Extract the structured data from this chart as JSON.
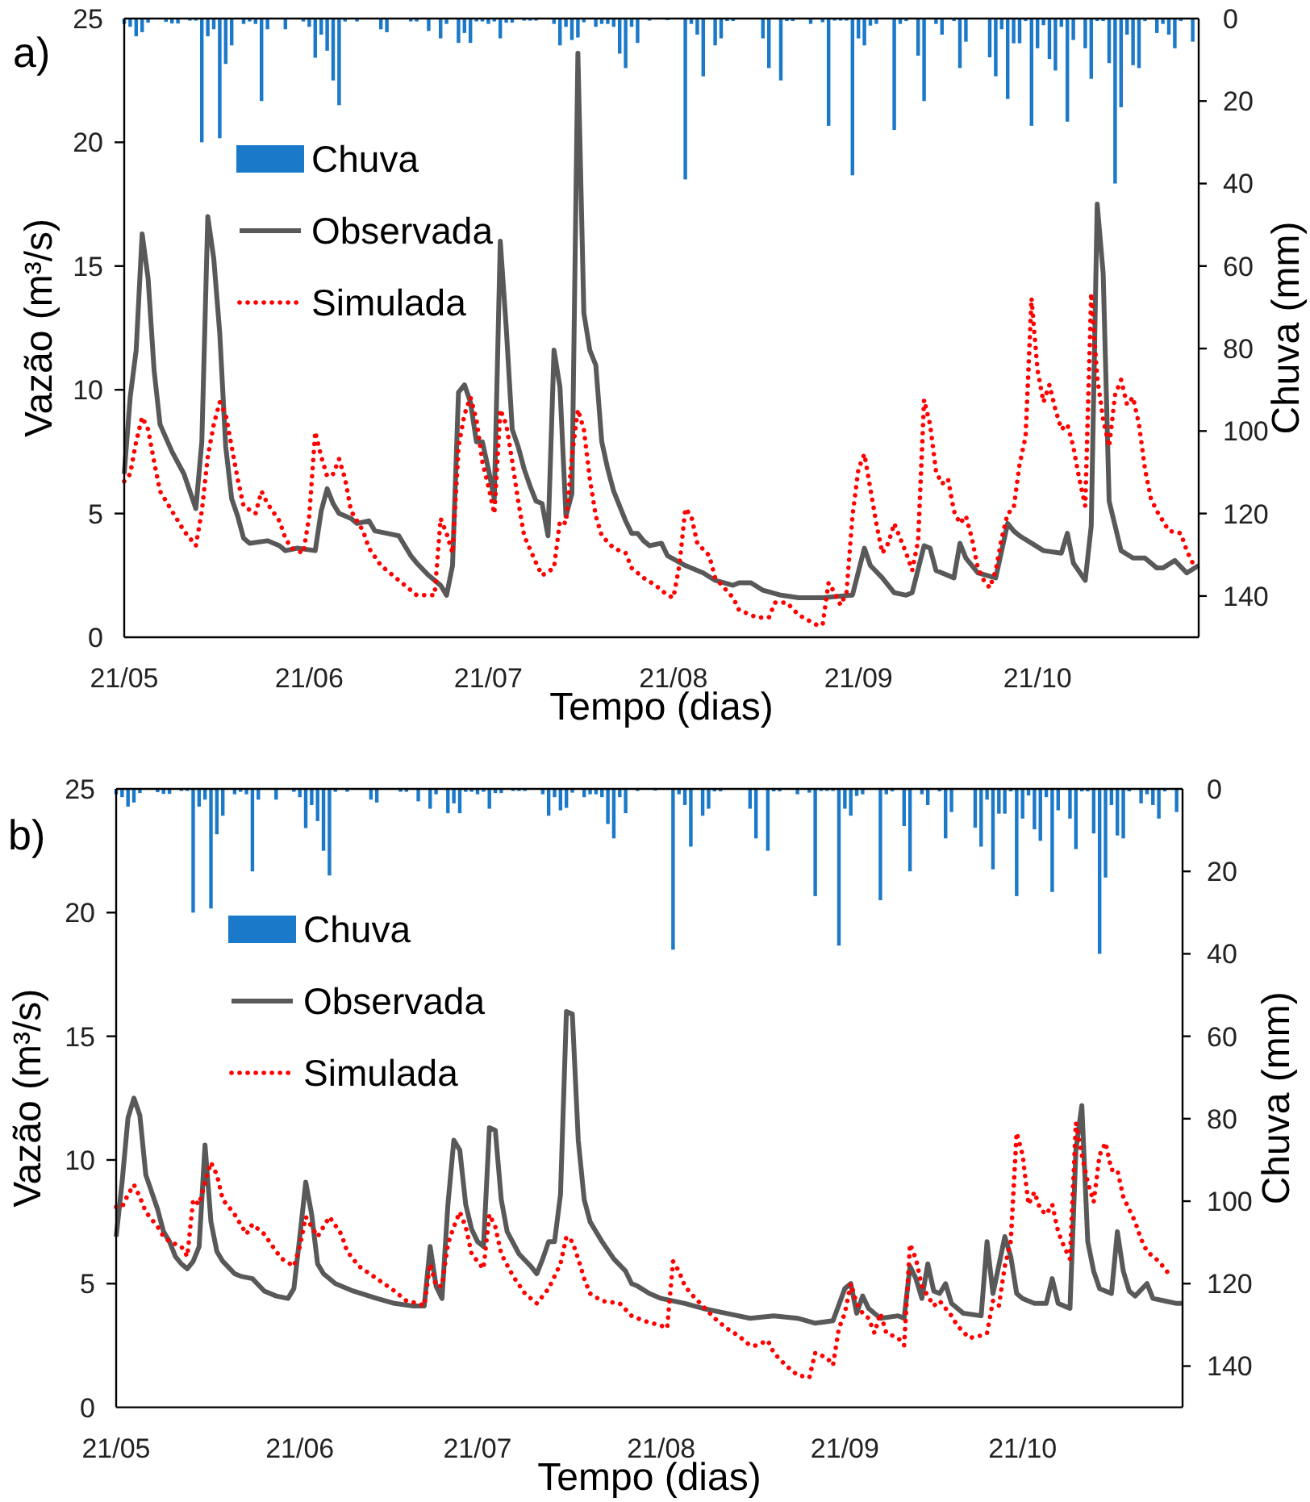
{
  "chart_data": [
    {
      "type": "line",
      "title": "a)",
      "xlabel": "Tempo (dias)",
      "ylabel": "Vazão (m³/s)",
      "y2label": "Chuva (mm)",
      "xlim": [
        "--05-21",
        "--11-17"
      ],
      "xticks": [
        {
          "value": "--05-21",
          "label": "21/05"
        },
        {
          "value": "--06-21",
          "label": "21/06"
        },
        {
          "value": "--07-21",
          "label": "21/07"
        },
        {
          "value": "--08-21",
          "label": "21/08"
        },
        {
          "value": "--09-21",
          "label": "21/09"
        },
        {
          "value": "--10-21",
          "label": "21/10"
        }
      ],
      "ylim": [
        0,
        25
      ],
      "yticks": [
        0,
        5,
        10,
        15,
        20,
        25
      ],
      "y2lim": [
        150,
        0
      ],
      "y2ticks": [
        0,
        20,
        40,
        60,
        80,
        100,
        120,
        140
      ],
      "legend": "top left",
      "series": [
        {
          "name": "Chuva",
          "type": "bar",
          "axis": "y2",
          "color": "#1b79c9",
          "x": [
            "--05-21",
            "--05-22",
            "--05-23",
            "--05-24",
            "--05-25",
            "--05-28",
            "--05-29",
            "--05-30",
            "--06-01",
            "--06-02",
            "--06-03",
            "--06-04",
            "--06-05",
            "--06-06",
            "--06-07",
            "--06-08",
            "--06-10",
            "--06-11",
            "--06-12",
            "--06-13",
            "--06-14",
            "--06-17",
            "--06-20",
            "--06-21",
            "--06-22",
            "--06-23",
            "--06-24",
            "--06-25",
            "--06-26",
            "--06-27",
            "--06-29",
            "--07-03",
            "--07-04",
            "--07-08",
            "--07-09",
            "--07-11",
            "--07-13",
            "--07-14",
            "--07-16",
            "--07-17",
            "--07-18",
            "--07-19",
            "--07-20",
            "--07-21",
            "--07-22",
            "--07-23",
            "--07-24",
            "--07-25",
            "--07-27",
            "--07-28",
            "--07-29",
            "--08-01",
            "--08-02",
            "--08-03",
            "--08-04",
            "--08-05",
            "--08-06",
            "--08-08",
            "--08-09",
            "--08-10",
            "--08-11",
            "--08-12",
            "--08-13",
            "--08-14",
            "--08-15",
            "--08-17",
            "--08-20",
            "--08-23",
            "--08-24",
            "--08-25",
            "--08-26",
            "--08-28",
            "--08-29",
            "--08-30",
            "--08-31",
            "--09-05",
            "--09-06",
            "--09-08",
            "--09-09",
            "--09-10",
            "--09-13",
            "--09-15",
            "--09-16",
            "--09-17",
            "--09-18",
            "--09-19",
            "--09-20",
            "--09-21",
            "--09-22",
            "--09-23",
            "--09-24",
            "--09-27",
            "--09-28",
            "--09-29",
            "--10-01",
            "--10-02",
            "--10-04",
            "--10-05",
            "--10-07",
            "--10-08",
            "--10-09",
            "--10-13",
            "--10-14",
            "--10-15",
            "--10-16",
            "--10-17",
            "--10-18",
            "--10-19",
            "--10-20",
            "--10-21",
            "--10-22",
            "--10-23",
            "--10-24",
            "--10-25",
            "--10-26",
            "--10-27",
            "--10-29",
            "--10-30",
            "--10-31",
            "--11-01",
            "--11-02",
            "--11-03",
            "--11-04",
            "--11-05",
            "--11-06",
            "--11-07",
            "--11-08",
            "--11-10",
            "--11-11",
            "--11-12",
            "--11-13",
            "--11-14",
            "--11-16"
          ],
          "values": [
            1.3,
            2,
            4.3,
            3.3,
            1,
            0.8,
            1.2,
            1.2,
            0.5,
            0.5,
            30,
            4.3,
            2.6,
            29,
            11,
            6.5,
            1.3,
            0.7,
            1.3,
            20,
            2.6,
            2.6,
            0.7,
            2,
            9.5,
            3.9,
            7.8,
            15,
            21,
            0.7,
            0.7,
            2.6,
            3.3,
            0.7,
            0.7,
            3,
            4.8,
            1.3,
            5.9,
            3.5,
            5.9,
            0.7,
            0.7,
            1.3,
            0.7,
            4.8,
            1,
            1,
            0.5,
            0.5,
            0.5,
            1.3,
            6.5,
            2,
            5.2,
            4.6,
            0.9,
            2,
            1.3,
            1.3,
            2,
            8.5,
            12,
            2,
            5.9,
            0.5,
            0.4,
            39,
            1.3,
            3.9,
            14,
            6.5,
            4.8,
            0.6,
            0.6,
            4.8,
            12,
            15,
            0.6,
            0.6,
            1.3,
            0.9,
            26,
            0.5,
            0.5,
            0.5,
            38,
            4.8,
            6.5,
            1.7,
            1.3,
            27,
            1.3,
            0.6,
            9,
            20,
            1.3,
            3.9,
            0.6,
            12,
            5.6,
            9.4,
            14,
            2.6,
            19.5,
            6,
            6,
            0.6,
            26,
            7.2,
            1.6,
            9.8,
            12.6,
            2,
            25,
            5.2,
            7.2,
            14.6,
            0.6,
            0.6,
            10.8,
            40,
            21.5,
            3.9,
            11.3,
            12,
            0.6,
            3.5,
            1.3,
            3.9,
            7.2,
            0.6,
            5.6
          ]
        },
        {
          "name": "Observada",
          "color": "#595959",
          "line_style": "solid",
          "x": [
            "--05-21",
            "--05-22",
            "--05-23",
            "--05-24",
            "--05-25",
            "--05-26",
            "--05-27",
            "--05-29",
            "--05-31",
            "--06-02",
            "--06-03",
            "--06-04",
            "--06-05",
            "--06-06",
            "--06-07",
            "--06-08",
            "--06-09",
            "--06-10",
            "--06-11",
            "--06-14",
            "--06-16",
            "--06-17",
            "--06-19",
            "--06-22",
            "--06-23",
            "--06-24",
            "--06-25",
            "--06-26",
            "--06-28",
            "--06-29",
            "--07-01",
            "--07-02",
            "--07-04",
            "--07-06",
            "--07-07",
            "--07-08",
            "--07-09",
            "--07-11",
            "--07-13",
            "--07-14",
            "--07-15",
            "--07-16",
            "--07-17",
            "--07-18",
            "--07-19",
            "--07-20",
            "--07-21",
            "--07-22",
            "--07-23",
            "--07-24",
            "--07-25",
            "--07-26",
            "--07-27",
            "--07-28",
            "--07-29",
            "--07-30",
            "--07-31",
            "--08-01",
            "--08-02",
            "--08-03",
            "--08-04",
            "--08-05",
            "--08-06",
            "--08-07",
            "--08-08",
            "--08-09",
            "--08-10",
            "--08-11",
            "--08-13",
            "--08-14",
            "--08-15",
            "--08-16",
            "--08-17",
            "--08-19",
            "--08-20",
            "--08-23",
            "--08-26",
            "--08-28",
            "--08-31",
            "--09-01",
            "--09-03",
            "--09-05",
            "--09-08",
            "--09-11",
            "--09-15",
            "--09-20",
            "--09-22",
            "--09-23",
            "--09-25",
            "--09-27",
            "--09-29",
            "--09-30",
            "--10-02",
            "--10-03",
            "--10-04",
            "--10-07",
            "--10-08",
            "--10-09",
            "--10-11",
            "--10-14",
            "--10-16",
            "--10-17",
            "--10-18",
            "--10-20",
            "--10-22",
            "--10-25",
            "--10-26",
            "--10-27",
            "--10-29",
            "--10-30",
            "--10-31",
            "--11-01",
            "--11-02",
            "--11-04",
            "--11-06",
            "--11-08",
            "--11-10",
            "--11-11",
            "--11-13",
            "--11-15",
            "--11-17"
          ],
          "values": [
            6.6,
            9.7,
            11.6,
            16.3,
            14.5,
            10.8,
            8.6,
            7.5,
            6.6,
            5.2,
            7.9,
            17,
            15.3,
            12.3,
            7.7,
            5.6,
            4.9,
            4.0,
            3.8,
            3.9,
            3.7,
            3.5,
            3.6,
            3.5,
            5.1,
            6.0,
            5.4,
            5.0,
            4.8,
            4.6,
            4.7,
            4.3,
            4.2,
            4.1,
            3.7,
            3.3,
            3.0,
            2.5,
            2.1,
            1.7,
            2.9,
            9.9,
            10.2,
            9.5,
            7.9,
            7.9,
            6.8,
            5.6,
            16,
            12.5,
            8.4,
            7.7,
            6.8,
            6.1,
            5.5,
            5.4,
            4.1,
            11.6,
            10.1,
            4.9,
            5.8,
            23.6,
            13.1,
            11.6,
            11,
            7.9,
            6.8,
            5.9,
            4.7,
            4.2,
            4.2,
            3.9,
            3.7,
            3.8,
            3.3,
            2.9,
            2.6,
            2.3,
            2.1,
            2.2,
            2.2,
            1.9,
            1.7,
            1.6,
            1.6,
            1.7,
            3.6,
            2.9,
            2.4,
            1.8,
            1.7,
            1.8,
            3.7,
            3.6,
            2.7,
            2.4,
            3.8,
            3.2,
            2.6,
            2.4,
            4.6,
            4.3,
            4.1,
            3.8,
            3.5,
            3.4,
            4.2,
            3.0,
            2.3,
            4.5,
            17.5,
            14.7,
            5.5,
            3.5,
            3.2,
            3.2,
            2.8,
            2.8,
            3.1,
            2.6,
            2.9
          ]
        },
        {
          "name": "Simulada",
          "color": "#ff0000",
          "line_style": "dotted",
          "x": [
            "--05-21",
            "--05-22",
            "--05-23",
            "--05-24",
            "--05-25",
            "--05-26",
            "--05-27",
            "--05-29",
            "--05-31",
            "--06-01",
            "--06-02",
            "--06-03",
            "--06-04",
            "--06-05",
            "--06-06",
            "--06-07",
            "--06-08",
            "--06-09",
            "--06-10",
            "--06-12",
            "--06-13",
            "--06-14",
            "--06-16",
            "--06-17",
            "--06-18",
            "--06-20",
            "--06-21",
            "--06-22",
            "--06-23",
            "--06-24",
            "--06-25",
            "--06-26",
            "--06-27",
            "--06-28",
            "--06-30",
            "--07-01",
            "--07-03",
            "--07-05",
            "--07-07",
            "--07-09",
            "--07-10",
            "--07-12",
            "--07-13",
            "--07-14",
            "--07-15",
            "--07-16",
            "--07-17",
            "--07-18",
            "--07-19",
            "--07-20",
            "--07-21",
            "--07-22",
            "--07-23",
            "--07-24",
            "--07-25",
            "--07-26",
            "--07-27",
            "--07-29",
            "--07-30",
            "--08-01",
            "--08-02",
            "--08-03",
            "--08-04",
            "--08-05",
            "--08-06",
            "--08-07",
            "--08-08",
            "--08-09",
            "--08-11",
            "--08-13",
            "--08-14",
            "--08-16",
            "--08-18",
            "--08-20",
            "--08-21",
            "--08-22",
            "--08-23",
            "--08-24",
            "--08-25",
            "--08-27",
            "--08-28",
            "--08-31",
            "--09-01",
            "--09-04",
            "--09-06",
            "--09-07",
            "--09-09",
            "--09-11",
            "--09-14",
            "--09-15",
            "--09-16",
            "--09-17",
            "--09-18",
            "--09-19",
            "--09-20",
            "--09-21",
            "--09-22",
            "--09-23",
            "--09-24",
            "--09-25",
            "--09-26",
            "--09-27",
            "--09-28",
            "--09-29",
            "--09-30",
            "--10-01",
            "--10-02",
            "--10-03",
            "--10-04",
            "--10-05",
            "--10-06",
            "--10-07",
            "--10-08",
            "--10-09",
            "--10-10",
            "--10-11",
            "--10-12",
            "--10-13",
            "--10-14",
            "--10-15",
            "--10-16",
            "--10-17",
            "--10-18",
            "--10-19",
            "--10-20",
            "--10-21",
            "--10-22",
            "--10-23",
            "--10-24",
            "--10-25",
            "--10-26",
            "--10-27",
            "--10-28",
            "--10-29",
            "--10-30",
            "--10-31",
            "--11-01",
            "--11-02",
            "--11-03",
            "--11-04",
            "--11-05",
            "--11-06",
            "--11-07",
            "--11-08",
            "--11-09",
            "--11-10",
            "--11-12",
            "--11-14",
            "--11-15",
            "--11-16"
          ],
          "values": [
            6.3,
            6.6,
            7.9,
            8.9,
            8.4,
            7.1,
            5.9,
            5.1,
            4.3,
            4.0,
            3.7,
            5.1,
            7.3,
            8.6,
            9.5,
            9.0,
            7.7,
            6.4,
            5.3,
            5.0,
            5.9,
            5.4,
            4.7,
            4.0,
            3.6,
            3.4,
            4.9,
            8.3,
            7.3,
            6.5,
            6.6,
            7.2,
            6.4,
            5.1,
            4.3,
            3.6,
            2.9,
            2.5,
            2.1,
            1.7,
            1.7,
            1.7,
            4.8,
            4.2,
            3.4,
            7.7,
            9.0,
            9.7,
            8.8,
            7.1,
            6.1,
            5.0,
            9.2,
            8.6,
            7.1,
            5.5,
            4.1,
            3.0,
            2.5,
            2.8,
            4.7,
            4.6,
            7.3,
            9.2,
            8.4,
            6.4,
            4.9,
            4.1,
            3.6,
            3.4,
            2.8,
            2.4,
            2.1,
            1.7,
            1.6,
            2.9,
            5.2,
            4.9,
            3.8,
            3.3,
            2.4,
            1.6,
            1.1,
            0.8,
            0.8,
            1.4,
            1.4,
            0.9,
            0.5,
            0.5,
            2.2,
            1.8,
            1.3,
            1.8,
            4.9,
            6.8,
            7.4,
            6.0,
            4.6,
            3.4,
            3.8,
            4.6,
            4.0,
            3.4,
            2.7,
            3.9,
            9.6,
            8.6,
            6.7,
            6.2,
            6.4,
            5.1,
            4.6,
            4.9,
            4.0,
            2.8,
            2.3,
            2.0,
            2.7,
            4.0,
            5.0,
            5.2,
            7.0,
            8.1,
            13.7,
            10.8,
            9.5,
            10.2,
            9.2,
            8.4,
            8.6,
            7.7,
            6.4,
            5.3,
            13.9,
            10.5,
            8.8,
            7.7,
            9.8,
            10.4,
            9.4,
            9.7,
            8.6,
            6.8,
            5.6,
            5.1,
            4.3,
            4.2,
            3.5,
            3.0
          ]
        }
      ]
    },
    {
      "type": "line",
      "title": "b)",
      "xlabel": "Tempo (dias)",
      "ylabel": "Vazão (m³/s)",
      "y2label": "Chuva (mm)",
      "xlim": [
        "--05-21",
        "--11-17"
      ],
      "xticks": [
        {
          "value": "--05-21",
          "label": "21/05"
        },
        {
          "value": "--06-21",
          "label": "21/06"
        },
        {
          "value": "--07-21",
          "label": "21/07"
        },
        {
          "value": "--08-21",
          "label": "21/08"
        },
        {
          "value": "--09-21",
          "label": "21/09"
        },
        {
          "value": "--10-21",
          "label": "21/10"
        }
      ],
      "ylim": [
        0,
        25
      ],
      "yticks": [
        0,
        5,
        10,
        15,
        20,
        25
      ],
      "y2lim": [
        150,
        0
      ],
      "y2ticks": [
        0,
        20,
        40,
        60,
        80,
        100,
        120,
        140
      ],
      "legend": "top left",
      "series": [
        {
          "name": "Chuva",
          "type": "bar",
          "axis": "y2",
          "color": "#1b79c9",
          "x": [
            "--05-21",
            "--05-22",
            "--05-23",
            "--05-24",
            "--05-25",
            "--05-28",
            "--05-29",
            "--05-30",
            "--06-01",
            "--06-02",
            "--06-03",
            "--06-04",
            "--06-05",
            "--06-06",
            "--06-07",
            "--06-08",
            "--06-10",
            "--06-11",
            "--06-12",
            "--06-13",
            "--06-14",
            "--06-17",
            "--06-20",
            "--06-21",
            "--06-22",
            "--06-23",
            "--06-24",
            "--06-25",
            "--06-26",
            "--06-27",
            "--06-29",
            "--07-03",
            "--07-04",
            "--07-08",
            "--07-09",
            "--07-11",
            "--07-13",
            "--07-14",
            "--07-16",
            "--07-17",
            "--07-18",
            "--07-19",
            "--07-20",
            "--07-21",
            "--07-22",
            "--07-23",
            "--07-24",
            "--07-25",
            "--07-27",
            "--07-28",
            "--07-29",
            "--08-01",
            "--08-02",
            "--08-03",
            "--08-04",
            "--08-05",
            "--08-06",
            "--08-08",
            "--08-09",
            "--08-10",
            "--08-11",
            "--08-12",
            "--08-13",
            "--08-14",
            "--08-15",
            "--08-17",
            "--08-20",
            "--08-23",
            "--08-24",
            "--08-25",
            "--08-26",
            "--08-28",
            "--08-29",
            "--08-30",
            "--08-31",
            "--09-05",
            "--09-06",
            "--09-08",
            "--09-09",
            "--09-10",
            "--09-13",
            "--09-15",
            "--09-16",
            "--09-17",
            "--09-18",
            "--09-19",
            "--09-20",
            "--09-21",
            "--09-22",
            "--09-23",
            "--09-24",
            "--09-27",
            "--09-28",
            "--09-29",
            "--10-01",
            "--10-02",
            "--10-04",
            "--10-05",
            "--10-07",
            "--10-08",
            "--10-09",
            "--10-13",
            "--10-14",
            "--10-15",
            "--10-16",
            "--10-17",
            "--10-18",
            "--10-19",
            "--10-20",
            "--10-21",
            "--10-22",
            "--10-23",
            "--10-24",
            "--10-25",
            "--10-26",
            "--10-27",
            "--10-29",
            "--10-30",
            "--10-31",
            "--11-01",
            "--11-02",
            "--11-03",
            "--11-04",
            "--11-05",
            "--11-06",
            "--11-07",
            "--11-08",
            "--11-10",
            "--11-11",
            "--11-12",
            "--11-13",
            "--11-14",
            "--11-16"
          ],
          "values": [
            1.3,
            2,
            4.3,
            3.3,
            1,
            0.8,
            1.2,
            1.2,
            0.5,
            0.5,
            30,
            4.3,
            2.6,
            29,
            11,
            6.5,
            1.3,
            0.7,
            1.3,
            20,
            2.6,
            2.6,
            0.7,
            2,
            9.5,
            3.9,
            7.8,
            15,
            21,
            0.7,
            0.7,
            2.6,
            3.3,
            0.7,
            0.7,
            3,
            4.8,
            1.3,
            5.9,
            3.5,
            5.9,
            0.7,
            0.7,
            1.3,
            0.7,
            4.8,
            1,
            1,
            0.5,
            0.5,
            0.5,
            1.3,
            6.5,
            2,
            5.2,
            4.6,
            0.9,
            2,
            1.3,
            1.3,
            2,
            8.5,
            12,
            2,
            5.9,
            0.5,
            0.4,
            39,
            1.3,
            3.9,
            14,
            6.5,
            4.8,
            0.6,
            0.6,
            4.8,
            12,
            15,
            0.6,
            0.6,
            1.3,
            0.9,
            26,
            0.5,
            0.5,
            0.5,
            38,
            4.8,
            6.5,
            1.7,
            1.3,
            27,
            1.3,
            0.6,
            9,
            20,
            1.3,
            3.9,
            0.6,
            12,
            5.6,
            9.4,
            14,
            2.6,
            19.5,
            6,
            6,
            0.6,
            26,
            7.2,
            1.6,
            9.8,
            12.6,
            2,
            25,
            5.2,
            7.2,
            14.6,
            0.6,
            0.6,
            10.8,
            40,
            21.5,
            3.9,
            11.3,
            12,
            0.6,
            3.5,
            1.3,
            3.9,
            7.2,
            0.6,
            5.6
          ]
        },
        {
          "name": "Observada",
          "color": "#595959",
          "line_style": "solid",
          "x": [
            "--05-21",
            "--05-22",
            "--05-23",
            "--05-24",
            "--05-25",
            "--05-26",
            "--05-28",
            "--05-29",
            "--05-30",
            "--05-31",
            "--06-01",
            "--06-02",
            "--06-03",
            "--06-04",
            "--06-05",
            "--06-06",
            "--06-07",
            "--06-08",
            "--06-10",
            "--06-11",
            "--06-13",
            "--06-15",
            "--06-17",
            "--06-19",
            "--06-20",
            "--06-21",
            "--06-22",
            "--06-23",
            "--06-24",
            "--06-25",
            "--06-27",
            "--06-30",
            "--07-04",
            "--07-07",
            "--07-10",
            "--07-12",
            "--07-13",
            "--07-14",
            "--07-15",
            "--07-16",
            "--07-17",
            "--07-18",
            "--07-19",
            "--07-20",
            "--07-21",
            "--07-22",
            "--07-23",
            "--07-24",
            "--07-25",
            "--07-26",
            "--07-28",
            "--07-30",
            "--07-31",
            "--08-01",
            "--08-02",
            "--08-03",
            "--08-04",
            "--08-05",
            "--08-06",
            "--08-07",
            "--08-08",
            "--08-09",
            "--08-11",
            "--08-13",
            "--08-15",
            "--08-16",
            "--08-17",
            "--08-19",
            "--08-21",
            "--08-25",
            "--08-28",
            "--09-01",
            "--09-05",
            "--09-09",
            "--09-13",
            "--09-16",
            "--09-19",
            "--09-21",
            "--09-22",
            "--09-23",
            "--09-24",
            "--09-25",
            "--09-27",
            "--09-30",
            "--10-01",
            "--10-02",
            "--10-03",
            "--10-04",
            "--10-05",
            "--10-06",
            "--10-07",
            "--10-08",
            "--10-09",
            "--10-11",
            "--10-14",
            "--10-15",
            "--10-16",
            "--10-18",
            "--10-19",
            "--10-20",
            "--10-21",
            "--10-23",
            "--10-25",
            "--10-26",
            "--10-27",
            "--10-28",
            "--10-29",
            "--10-30",
            "--10-31",
            "--11-01",
            "--11-02",
            "--11-03",
            "--11-05",
            "--11-06",
            "--11-07",
            "--11-08",
            "--11-09",
            "--11-11",
            "--11-12",
            "--11-14",
            "--11-16",
            "--11-17"
          ],
          "values": [
            6.9,
            9.1,
            11.7,
            12.5,
            11.8,
            9.4,
            8.0,
            7.1,
            6.7,
            6.1,
            5.8,
            5.6,
            5.9,
            6.5,
            10.6,
            7.5,
            6.3,
            5.9,
            5.4,
            5.3,
            5.2,
            4.7,
            4.5,
            4.4,
            4.8,
            6.9,
            9.1,
            7.8,
            5.8,
            5.4,
            5.0,
            4.7,
            4.4,
            4.2,
            4.1,
            4.1,
            6.5,
            4.9,
            4.4,
            8.2,
            10.8,
            10.4,
            8.2,
            7.2,
            6.7,
            6.5,
            11.3,
            11.2,
            8.4,
            7.1,
            6.2,
            5.7,
            5.4,
            6.0,
            6.7,
            6.7,
            8.6,
            16.0,
            15.9,
            10.8,
            8.4,
            7.5,
            6.7,
            6.0,
            5.5,
            5.0,
            4.9,
            4.6,
            4.4,
            4.2,
            4.0,
            3.8,
            3.6,
            3.7,
            3.6,
            3.4,
            3.5,
            4.8,
            5.0,
            3.8,
            4.5,
            4.0,
            3.6,
            3.7,
            3.6,
            5.7,
            5.2,
            4.4,
            5.8,
            4.7,
            4.6,
            5.0,
            4.2,
            3.8,
            3.7,
            6.7,
            4.6,
            6.9,
            6.1,
            4.6,
            4.4,
            4.2,
            4.2,
            5.2,
            4.2,
            4.1,
            4.0,
            10.4,
            12.2,
            6.7,
            5.5,
            4.8,
            4.6,
            7.1,
            5.5,
            4.7,
            4.5,
            5.0,
            4.4,
            4.3,
            4.2,
            4.2
          ]
        },
        {
          "name": "Simulada",
          "color": "#ff0000",
          "line_style": "dotted",
          "x": [
            "--05-21",
            "--05-22",
            "--05-23",
            "--05-24",
            "--05-25",
            "--05-26",
            "--05-28",
            "--05-29",
            "--05-30",
            "--06-01",
            "--06-02",
            "--06-03",
            "--06-04",
            "--06-05",
            "--06-06",
            "--06-07",
            "--06-08",
            "--06-10",
            "--06-12",
            "--06-13",
            "--06-15",
            "--06-17",
            "--06-18",
            "--06-20",
            "--06-21",
            "--06-22",
            "--06-23",
            "--06-24",
            "--06-26",
            "--06-28",
            "--06-29",
            "--07-01",
            "--07-04",
            "--07-07",
            "--07-09",
            "--07-11",
            "--07-12",
            "--07-13",
            "--07-14",
            "--07-15",
            "--07-16",
            "--07-17",
            "--07-18",
            "--07-19",
            "--07-20",
            "--07-22",
            "--07-23",
            "--07-24",
            "--07-25",
            "--07-27",
            "--07-29",
            "--07-31",
            "--08-01",
            "--08-02",
            "--08-04",
            "--08-05",
            "--08-06",
            "--08-07",
            "--08-08",
            "--08-09",
            "--08-11",
            "--08-14",
            "--08-16",
            "--08-18",
            "--08-21",
            "--08-22",
            "--08-23",
            "--08-24",
            "--08-25",
            "--08-26",
            "--08-28",
            "--08-30",
            "--09-01",
            "--09-03",
            "--09-05",
            "--09-06",
            "--09-08",
            "--09-09",
            "--09-11",
            "--09-13",
            "--09-15",
            "--09-16",
            "--09-18",
            "--09-19",
            "--09-20",
            "--09-21",
            "--09-22",
            "--09-23",
            "--09-24",
            "--09-25",
            "--09-26",
            "--09-27",
            "--09-28",
            "--09-30",
            "--10-01",
            "--10-02",
            "--10-03",
            "--10-04",
            "--10-05",
            "--10-06",
            "--10-07",
            "--10-09",
            "--10-10",
            "--10-12",
            "--10-14",
            "--10-15",
            "--10-16",
            "--10-17",
            "--10-18",
            "--10-19",
            "--10-20",
            "--10-21",
            "--10-22",
            "--10-23",
            "--10-24",
            "--10-25",
            "--10-26",
            "--10-27",
            "--10-28",
            "--10-29",
            "--10-30",
            "--10-31",
            "--11-01",
            "--11-02",
            "--11-03",
            "--11-04",
            "--11-05",
            "--11-06",
            "--11-07",
            "--11-09",
            "--11-10",
            "--11-11",
            "--11-13",
            "--11-14",
            "--11-15"
          ],
          "values": [
            8.1,
            8.1,
            8.6,
            9.0,
            8.5,
            7.9,
            7.3,
            6.9,
            6.7,
            6.5,
            6.1,
            8.4,
            8.2,
            9.1,
            9.9,
            9.4,
            8.4,
            7.8,
            7.0,
            7.4,
            7.0,
            6.3,
            6.0,
            5.7,
            6.5,
            7.7,
            7.3,
            6.9,
            7.7,
            7.0,
            6.3,
            5.7,
            5.2,
            4.7,
            4.3,
            4.2,
            4.1,
            5.8,
            4.9,
            4.9,
            6.6,
            7.3,
            7.9,
            7.3,
            6.2,
            5.6,
            7.8,
            7.3,
            6.2,
            5.3,
            4.6,
            4.2,
            4.5,
            4.8,
            5.8,
            6.9,
            6.7,
            6.0,
            5.2,
            4.6,
            4.3,
            4.2,
            3.7,
            3.5,
            3.3,
            3.2,
            5.9,
            5.5,
            4.9,
            4.6,
            4.1,
            3.6,
            3.2,
            2.9,
            2.5,
            2.5,
            2.7,
            2.2,
            1.7,
            1.3,
            1.2,
            2.2,
            2.0,
            1.7,
            3.2,
            3.8,
            5.0,
            4.2,
            3.8,
            3.6,
            3.0,
            3.8,
            3.0,
            2.8,
            2.5,
            6.6,
            6.0,
            4.9,
            4.5,
            4.1,
            4.3,
            3.7,
            3.3,
            2.8,
            2.9,
            3.0,
            4.3,
            4.1,
            5.7,
            6.7,
            11.1,
            10.2,
            8.2,
            8.7,
            8.0,
            7.8,
            8.2,
            7.1,
            6.5,
            6.0,
            11.5,
            10.2,
            9.1,
            8.3,
            10.2,
            10.7,
            9.6,
            9.6,
            8.5,
            7.5,
            6.8,
            6.3,
            5.9,
            5.6,
            5.3
          ]
        }
      ]
    }
  ]
}
